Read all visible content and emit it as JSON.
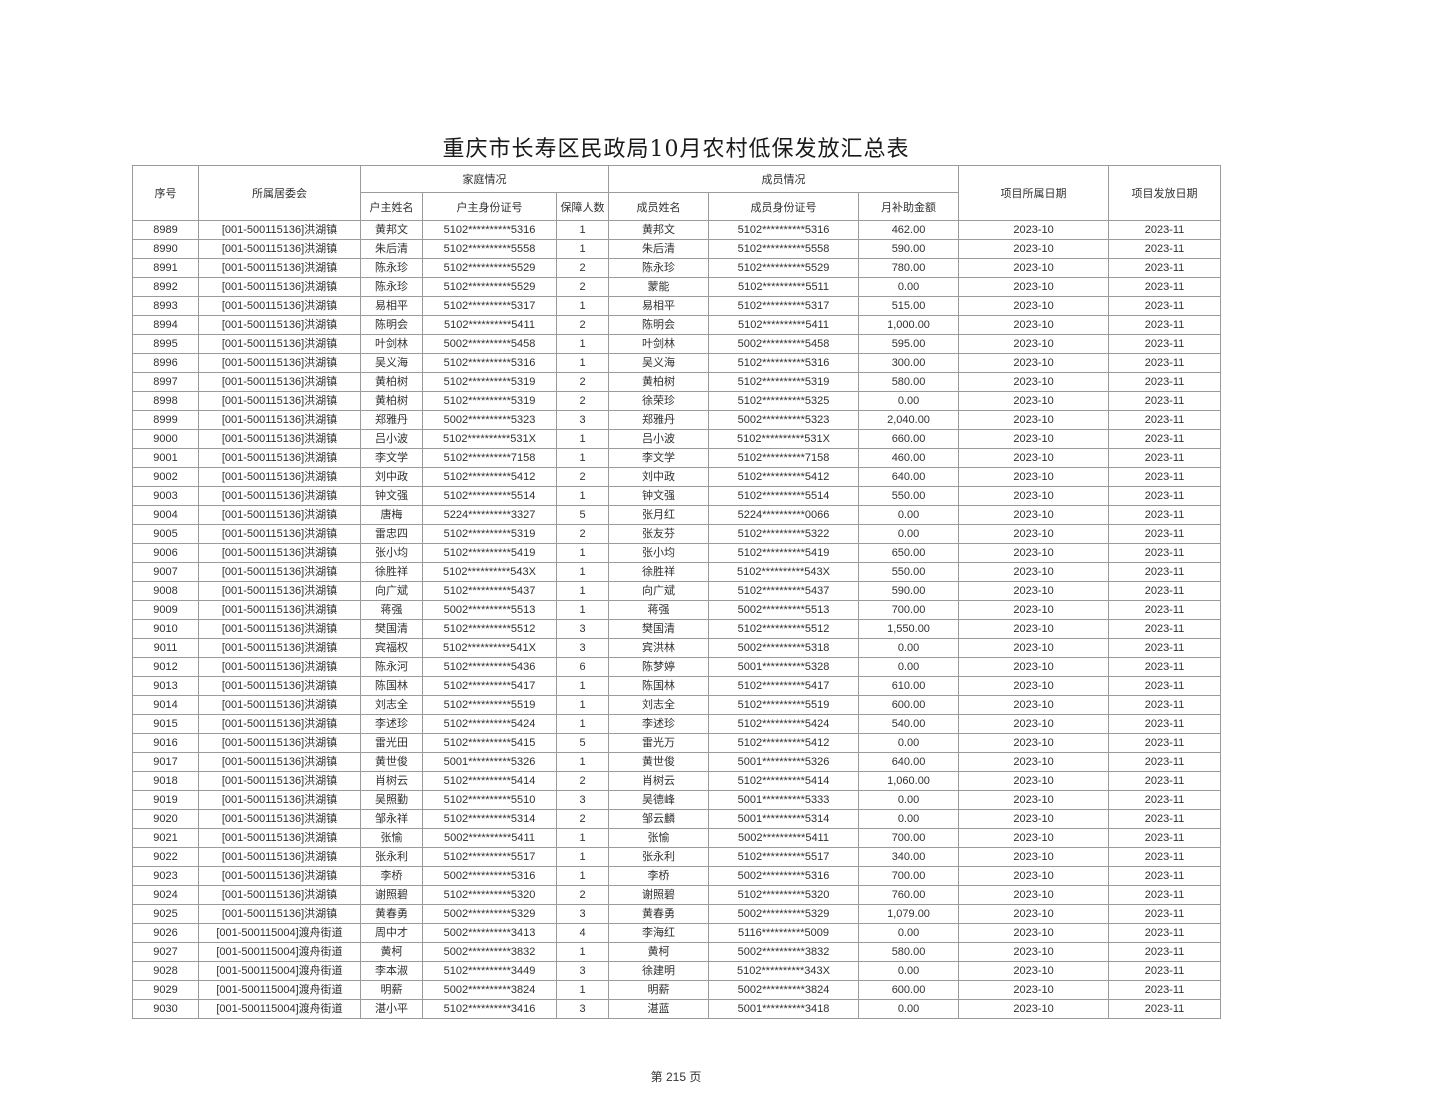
{
  "page": {
    "title": "重庆市长寿区民政局10月农村低保发放汇总表",
    "footer": "第 215 页"
  },
  "table": {
    "headers": {
      "serial": "序号",
      "committee": "所属居委会",
      "family_group": "家庭情况",
      "member_group": "成员情况",
      "householder_name": "户主姓名",
      "householder_id": "户主身份证号",
      "insured_count": "保障人数",
      "member_name": "成员姓名",
      "member_id": "成员身份证号",
      "monthly_subsidy": "月补助金额",
      "project_month": "项目所属日期",
      "issue_month": "项目发放日期"
    },
    "rows": [
      [
        "8989",
        "[001-500115136]洪湖镇",
        "黄邦文",
        "5102**********5316",
        "1",
        "黄邦文",
        "5102**********5316",
        "462.00",
        "2023-10",
        "2023-11"
      ],
      [
        "8990",
        "[001-500115136]洪湖镇",
        "朱后清",
        "5102**********5558",
        "1",
        "朱后清",
        "5102**********5558",
        "590.00",
        "2023-10",
        "2023-11"
      ],
      [
        "8991",
        "[001-500115136]洪湖镇",
        "陈永珍",
        "5102**********5529",
        "2",
        "陈永珍",
        "5102**********5529",
        "780.00",
        "2023-10",
        "2023-11"
      ],
      [
        "8992",
        "[001-500115136]洪湖镇",
        "陈永珍",
        "5102**********5529",
        "2",
        "蒙能",
        "5102**********5511",
        "0.00",
        "2023-10",
        "2023-11"
      ],
      [
        "8993",
        "[001-500115136]洪湖镇",
        "易相平",
        "5102**********5317",
        "1",
        "易相平",
        "5102**********5317",
        "515.00",
        "2023-10",
        "2023-11"
      ],
      [
        "8994",
        "[001-500115136]洪湖镇",
        "陈明会",
        "5102**********5411",
        "2",
        "陈明会",
        "5102**********5411",
        "1,000.00",
        "2023-10",
        "2023-11"
      ],
      [
        "8995",
        "[001-500115136]洪湖镇",
        "叶剑林",
        "5002**********5458",
        "1",
        "叶剑林",
        "5002**********5458",
        "595.00",
        "2023-10",
        "2023-11"
      ],
      [
        "8996",
        "[001-500115136]洪湖镇",
        "吴义海",
        "5102**********5316",
        "1",
        "吴义海",
        "5102**********5316",
        "300.00",
        "2023-10",
        "2023-11"
      ],
      [
        "8997",
        "[001-500115136]洪湖镇",
        "黄柏树",
        "5102**********5319",
        "2",
        "黄柏树",
        "5102**********5319",
        "580.00",
        "2023-10",
        "2023-11"
      ],
      [
        "8998",
        "[001-500115136]洪湖镇",
        "黄柏树",
        "5102**********5319",
        "2",
        "徐荣珍",
        "5102**********5325",
        "0.00",
        "2023-10",
        "2023-11"
      ],
      [
        "8999",
        "[001-500115136]洪湖镇",
        "郑雅丹",
        "5002**********5323",
        "3",
        "郑雅丹",
        "5002**********5323",
        "2,040.00",
        "2023-10",
        "2023-11"
      ],
      [
        "9000",
        "[001-500115136]洪湖镇",
        "吕小波",
        "5102**********531X",
        "1",
        "吕小波",
        "5102**********531X",
        "660.00",
        "2023-10",
        "2023-11"
      ],
      [
        "9001",
        "[001-500115136]洪湖镇",
        "李文学",
        "5102**********7158",
        "1",
        "李文学",
        "5102**********7158",
        "460.00",
        "2023-10",
        "2023-11"
      ],
      [
        "9002",
        "[001-500115136]洪湖镇",
        "刘中政",
        "5102**********5412",
        "2",
        "刘中政",
        "5102**********5412",
        "640.00",
        "2023-10",
        "2023-11"
      ],
      [
        "9003",
        "[001-500115136]洪湖镇",
        "钟文强",
        "5102**********5514",
        "1",
        "钟文强",
        "5102**********5514",
        "550.00",
        "2023-10",
        "2023-11"
      ],
      [
        "9004",
        "[001-500115136]洪湖镇",
        "唐梅",
        "5224**********3327",
        "5",
        "张月红",
        "5224**********0066",
        "0.00",
        "2023-10",
        "2023-11"
      ],
      [
        "9005",
        "[001-500115136]洪湖镇",
        "雷忠四",
        "5102**********5319",
        "2",
        "张友芬",
        "5102**********5322",
        "0.00",
        "2023-10",
        "2023-11"
      ],
      [
        "9006",
        "[001-500115136]洪湖镇",
        "张小均",
        "5102**********5419",
        "1",
        "张小均",
        "5102**********5419",
        "650.00",
        "2023-10",
        "2023-11"
      ],
      [
        "9007",
        "[001-500115136]洪湖镇",
        "徐胜祥",
        "5102**********543X",
        "1",
        "徐胜祥",
        "5102**********543X",
        "550.00",
        "2023-10",
        "2023-11"
      ],
      [
        "9008",
        "[001-500115136]洪湖镇",
        "向广斌",
        "5102**********5437",
        "1",
        "向广斌",
        "5102**********5437",
        "590.00",
        "2023-10",
        "2023-11"
      ],
      [
        "9009",
        "[001-500115136]洪湖镇",
        "蒋强",
        "5002**********5513",
        "1",
        "蒋强",
        "5002**********5513",
        "700.00",
        "2023-10",
        "2023-11"
      ],
      [
        "9010",
        "[001-500115136]洪湖镇",
        "樊国清",
        "5102**********5512",
        "3",
        "樊国清",
        "5102**********5512",
        "1,550.00",
        "2023-10",
        "2023-11"
      ],
      [
        "9011",
        "[001-500115136]洪湖镇",
        "宾福权",
        "5102**********541X",
        "3",
        "宾洪林",
        "5002**********5318",
        "0.00",
        "2023-10",
        "2023-11"
      ],
      [
        "9012",
        "[001-500115136]洪湖镇",
        "陈永河",
        "5102**********5436",
        "6",
        "陈梦婷",
        "5001**********5328",
        "0.00",
        "2023-10",
        "2023-11"
      ],
      [
        "9013",
        "[001-500115136]洪湖镇",
        "陈国林",
        "5102**********5417",
        "1",
        "陈国林",
        "5102**********5417",
        "610.00",
        "2023-10",
        "2023-11"
      ],
      [
        "9014",
        "[001-500115136]洪湖镇",
        "刘志全",
        "5102**********5519",
        "1",
        "刘志全",
        "5102**********5519",
        "600.00",
        "2023-10",
        "2023-11"
      ],
      [
        "9015",
        "[001-500115136]洪湖镇",
        "李述珍",
        "5102**********5424",
        "1",
        "李述珍",
        "5102**********5424",
        "540.00",
        "2023-10",
        "2023-11"
      ],
      [
        "9016",
        "[001-500115136]洪湖镇",
        "雷光田",
        "5102**********5415",
        "5",
        "雷光万",
        "5102**********5412",
        "0.00",
        "2023-10",
        "2023-11"
      ],
      [
        "9017",
        "[001-500115136]洪湖镇",
        "黄世俊",
        "5001**********5326",
        "1",
        "黄世俊",
        "5001**********5326",
        "640.00",
        "2023-10",
        "2023-11"
      ],
      [
        "9018",
        "[001-500115136]洪湖镇",
        "肖树云",
        "5102**********5414",
        "2",
        "肖树云",
        "5102**********5414",
        "1,060.00",
        "2023-10",
        "2023-11"
      ],
      [
        "9019",
        "[001-500115136]洪湖镇",
        "吴照勤",
        "5102**********5510",
        "3",
        "吴德峰",
        "5001**********5333",
        "0.00",
        "2023-10",
        "2023-11"
      ],
      [
        "9020",
        "[001-500115136]洪湖镇",
        "邹永祥",
        "5102**********5314",
        "2",
        "邹云麟",
        "5001**********5314",
        "0.00",
        "2023-10",
        "2023-11"
      ],
      [
        "9021",
        "[001-500115136]洪湖镇",
        "张愉",
        "5002**********5411",
        "1",
        "张愉",
        "5002**********5411",
        "700.00",
        "2023-10",
        "2023-11"
      ],
      [
        "9022",
        "[001-500115136]洪湖镇",
        "张永利",
        "5102**********5517",
        "1",
        "张永利",
        "5102**********5517",
        "340.00",
        "2023-10",
        "2023-11"
      ],
      [
        "9023",
        "[001-500115136]洪湖镇",
        "李桥",
        "5002**********5316",
        "1",
        "李桥",
        "5002**********5316",
        "700.00",
        "2023-10",
        "2023-11"
      ],
      [
        "9024",
        "[001-500115136]洪湖镇",
        "谢照碧",
        "5102**********5320",
        "2",
        "谢照碧",
        "5102**********5320",
        "760.00",
        "2023-10",
        "2023-11"
      ],
      [
        "9025",
        "[001-500115136]洪湖镇",
        "黄春勇",
        "5002**********5329",
        "3",
        "黄春勇",
        "5002**********5329",
        "1,079.00",
        "2023-10",
        "2023-11"
      ],
      [
        "9026",
        "[001-500115004]渡舟街道",
        "周中才",
        "5002**********3413",
        "4",
        "李海红",
        "5116**********5009",
        "0.00",
        "2023-10",
        "2023-11"
      ],
      [
        "9027",
        "[001-500115004]渡舟街道",
        "黄柯",
        "5002**********3832",
        "1",
        "黄柯",
        "5002**********3832",
        "580.00",
        "2023-10",
        "2023-11"
      ],
      [
        "9028",
        "[001-500115004]渡舟街道",
        "李本淑",
        "5102**********3449",
        "3",
        "徐建明",
        "5102**********343X",
        "0.00",
        "2023-10",
        "2023-11"
      ],
      [
        "9029",
        "[001-500115004]渡舟街道",
        "明薪",
        "5002**********3824",
        "1",
        "明薪",
        "5002**********3824",
        "600.00",
        "2023-10",
        "2023-11"
      ],
      [
        "9030",
        "[001-500115004]渡舟街道",
        "湛小平",
        "5102**********3416",
        "3",
        "湛蓝",
        "5001**********3418",
        "0.00",
        "2023-10",
        "2023-11"
      ]
    ]
  }
}
